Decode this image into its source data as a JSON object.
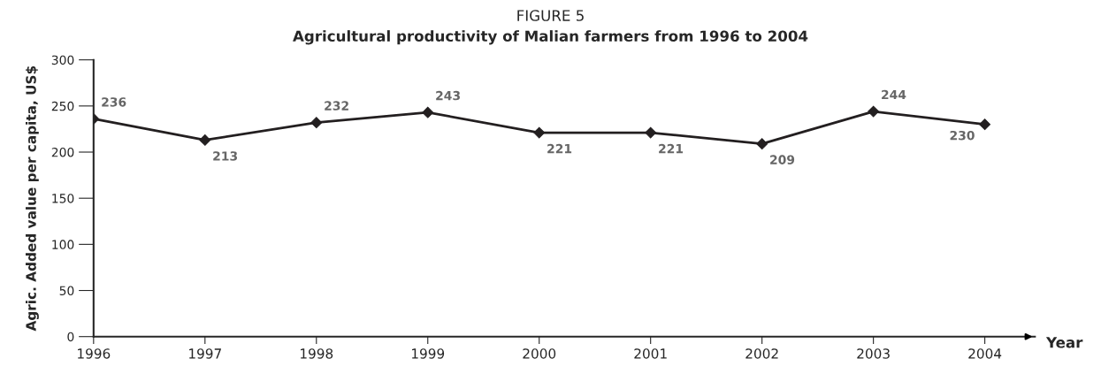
{
  "chart_data": {
    "type": "line",
    "title": "FIGURE 5",
    "subtitle": "Agricultural productivity of Malian farmers from 1996 to 2004",
    "xlabel": "Year",
    "ylabel": "Agric. Added value per capita, US$",
    "x": [
      1996,
      1997,
      1998,
      1999,
      2000,
      2001,
      2002,
      2003,
      2004
    ],
    "series": [
      {
        "color": "#231f20",
        "values": [
          236,
          213,
          232,
          243,
          221,
          221,
          209,
          244,
          230
        ]
      }
    ],
    "xlim": [
      1996,
      2004.45
    ],
    "xticks": [
      1996,
      1997,
      1998,
      1999,
      2000,
      2001,
      2002,
      2003,
      2004
    ],
    "ylim": [
      0,
      300
    ],
    "yticks": [
      0,
      50,
      100,
      150,
      200,
      250,
      300
    ],
    "marker": "diamond",
    "line_style": "solid",
    "data_labels": true,
    "grid": false,
    "legend": false
  }
}
